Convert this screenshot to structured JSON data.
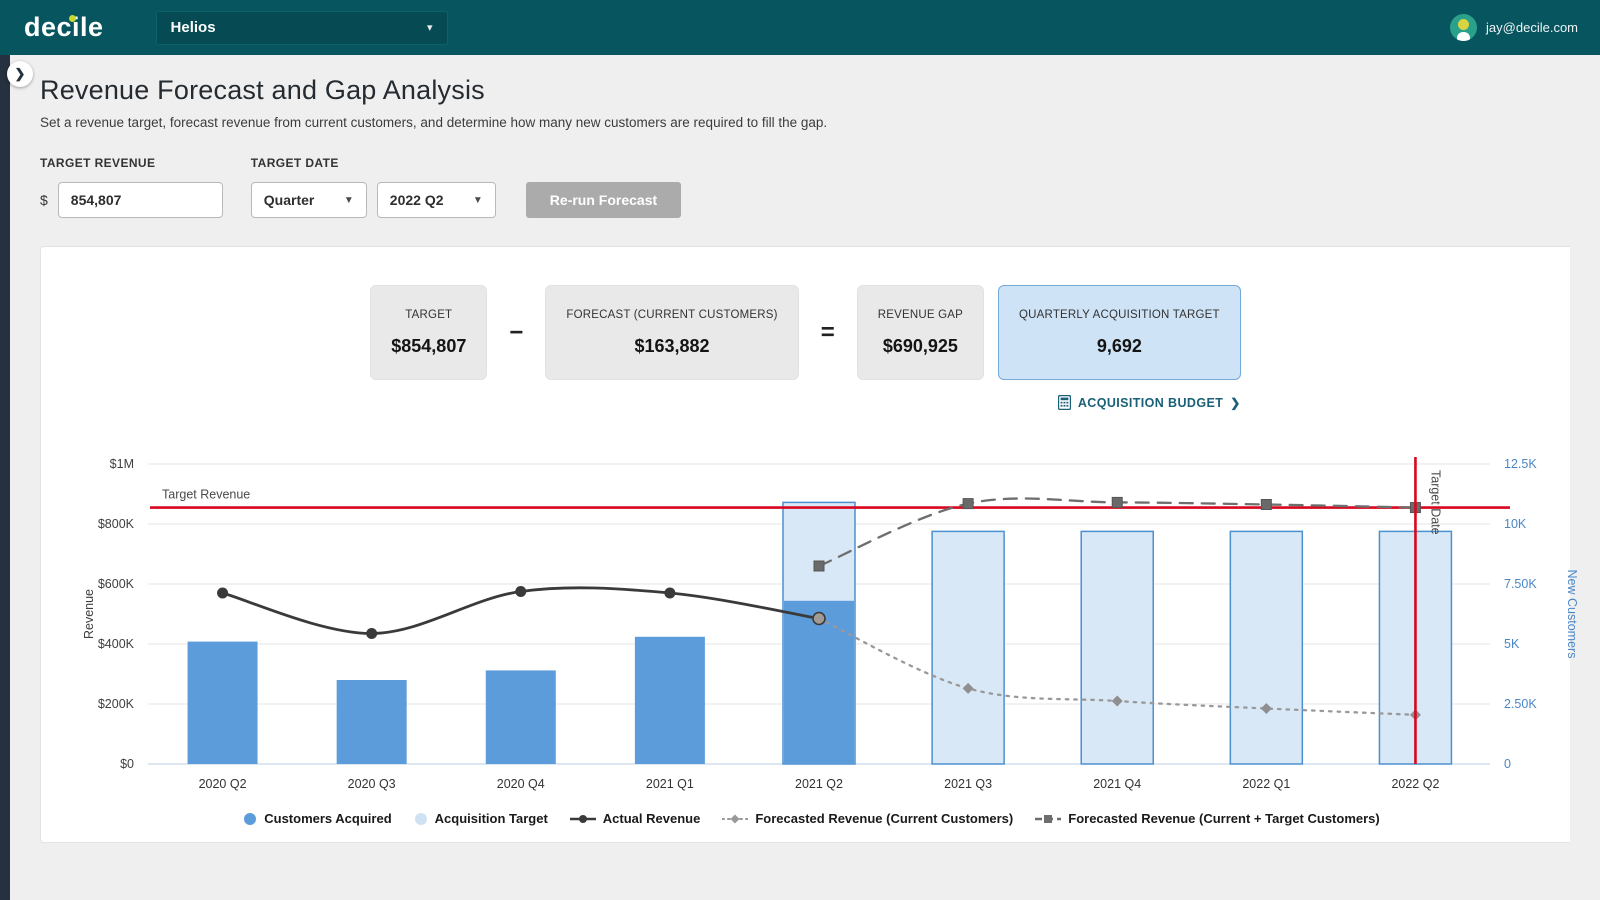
{
  "header": {
    "brand": "decile",
    "workspace": "Helios",
    "caret": "▾",
    "user_email": "jay@decile.com"
  },
  "page": {
    "title": "Revenue Forecast and Gap Analysis",
    "subtitle": "Set a revenue target, forecast revenue from current customers, and determine how many new customers are required to fill the gap."
  },
  "controls": {
    "target_revenue_label": "TARGET REVENUE",
    "currency_prefix": "$",
    "target_revenue_value": "854,807",
    "target_date_label": "TARGET DATE",
    "period_select_value": "Quarter",
    "date_select_value": "2022 Q2",
    "select_caret": "▼",
    "rerun_button_label": "Re-run Forecast"
  },
  "equation": {
    "cards": [
      {
        "label": "TARGET",
        "value": "$854,807"
      },
      {
        "label": "FORECAST (CURRENT CUSTOMERS)",
        "value": "$163,882"
      },
      {
        "label": "REVENUE GAP",
        "value": "$690,925"
      },
      {
        "label": "QUARTERLY ACQUISITION TARGET",
        "value": "9,692"
      }
    ],
    "operators": [
      "−",
      "="
    ],
    "budget_link_label": "ACQUISITION BUDGET",
    "budget_link_chevron": "❯"
  },
  "collapse_chevron": "❯",
  "chart_data": {
    "type": "combo-bar-line",
    "categories": [
      "2020 Q2",
      "2020 Q3",
      "2020 Q4",
      "2021 Q1",
      "2021 Q2",
      "2021 Q3",
      "2021 Q4",
      "2022 Q1",
      "2022 Q2"
    ],
    "series": [
      {
        "name": "Customers Acquired",
        "type": "bar",
        "axis": "right",
        "color": "#5d9cdb",
        "values": [
          5100,
          3500,
          3900,
          5300,
          6800,
          null,
          null,
          null,
          null
        ]
      },
      {
        "name": "Acquisition Target",
        "type": "bar",
        "axis": "right",
        "color": "#d9e8f7",
        "border": "#4d90cf",
        "values": [
          null,
          null,
          null,
          null,
          10900,
          9692,
          9692,
          9692,
          9692
        ]
      },
      {
        "name": "Actual Revenue",
        "type": "line",
        "axis": "left",
        "style": "solid",
        "color": "#3a3a3a",
        "marker": "circle",
        "last_marker": "ring",
        "values": [
          570000,
          435000,
          575000,
          570000,
          485000,
          null,
          null,
          null,
          null
        ]
      },
      {
        "name": "Forecasted Revenue (Current Customers)",
        "type": "line",
        "axis": "left",
        "style": "dotted",
        "color": "#999999",
        "marker": "diamond",
        "skip_first": true,
        "values": [
          null,
          null,
          null,
          null,
          485000,
          252000,
          210000,
          185000,
          163882
        ]
      },
      {
        "name": "Forecasted Revenue (Current + Target Customers)",
        "type": "line",
        "axis": "left",
        "style": "dashed",
        "color": "#6e6e6e",
        "marker": "square",
        "values": [
          null,
          null,
          null,
          null,
          660000,
          868000,
          872000,
          865000,
          854807
        ]
      }
    ],
    "left_axis": {
      "label": "Revenue",
      "max": 1000000,
      "ticks": [
        "$0",
        "$200K",
        "$400K",
        "$600K",
        "$800K",
        "$1M"
      ]
    },
    "right_axis": {
      "label": "New Customers",
      "max": 12500,
      "ticks": [
        "0",
        "2.50K",
        "5K",
        "7.50K",
        "10K",
        "12.5K"
      ]
    },
    "target_revenue": {
      "value": 854807,
      "label": "Target Revenue",
      "color": "#d8071d"
    },
    "target_date": {
      "index": 8,
      "label": "Target Date",
      "color": "#d8071d"
    },
    "grid": true,
    "legend_position": "bottom",
    "legend": [
      {
        "label": "Customers Acquired",
        "swatch": "circle",
        "color": "#5d9cdb"
      },
      {
        "label": "Acquisition Target",
        "swatch": "circle",
        "color": "#cfe2f4"
      },
      {
        "label": "Actual Revenue",
        "swatch": "line-solid",
        "color": "#3a3a3a"
      },
      {
        "label": "Forecasted Revenue (Current Customers)",
        "swatch": "line-dotted",
        "color": "#999999"
      },
      {
        "label": "Forecasted Revenue (Current + Target Customers)",
        "swatch": "line-dashed",
        "color": "#6e6e6e"
      }
    ]
  }
}
